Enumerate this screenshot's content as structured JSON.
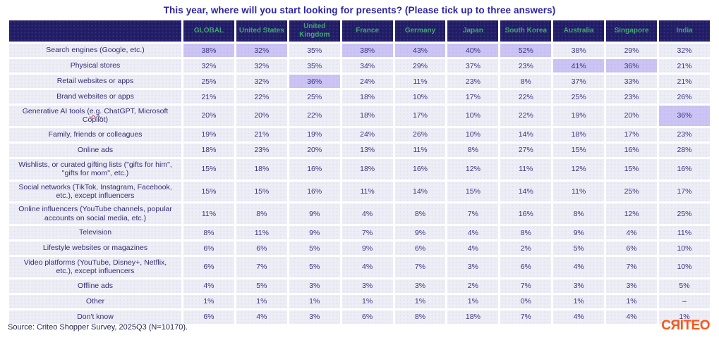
{
  "title": "This year, where will you start looking for presents? (Please tick up to three answers)",
  "source": "Source: Criteo Shopper Survey, 2025Q3 (N=10170).",
  "brand": {
    "logo_text": "CЯITEO",
    "logo_color": "#F4581C"
  },
  "colors": {
    "header_bg": "#211C66",
    "header_text": "#41A86F",
    "cell_bg": "#EDEDF6",
    "highlight_bg": "#CBC4F4",
    "body_text": "#3A3580",
    "title_text": "#2B24A3",
    "logo_orange": "#F4581C"
  },
  "chart_data": {
    "type": "table",
    "title": "This year, where will you start looking for presents? (Please tick up to three answers)",
    "value_unit": "%",
    "columns": [
      "GLOBAL",
      "United States",
      "United Kingdom",
      "France",
      "Germany",
      "Japan",
      "South Korea",
      "Australia",
      "Singapore",
      "India"
    ],
    "highlight_meaning": "highlighted cell = top answer within that column",
    "rows": [
      {
        "label": "Search engines (Google, etc.)",
        "values": [
          38,
          32,
          35,
          38,
          43,
          40,
          52,
          38,
          29,
          32
        ],
        "highlights": [
          0,
          1,
          3,
          4,
          5,
          6
        ]
      },
      {
        "label": "Physical stores",
        "values": [
          32,
          32,
          35,
          34,
          29,
          37,
          23,
          41,
          36,
          21
        ],
        "highlights": [
          7,
          8
        ]
      },
      {
        "label": "Retail websites or apps",
        "values": [
          25,
          32,
          36,
          24,
          11,
          23,
          8,
          37,
          33,
          21
        ],
        "highlights": [
          2
        ]
      },
      {
        "label": "Brand websites or apps",
        "values": [
          21,
          22,
          25,
          18,
          10,
          17,
          22,
          25,
          23,
          26
        ],
        "highlights": []
      },
      {
        "label": "Generative AI tools (e.g. ChatGPT, Microsoft Copilot)",
        "values": [
          20,
          20,
          22,
          18,
          17,
          10,
          22,
          19,
          20,
          36
        ],
        "highlights": [
          9
        ],
        "tall": true,
        "squiggle": "e.g."
      },
      {
        "label": "Family, friends or colleagues",
        "values": [
          19,
          21,
          19,
          24,
          26,
          10,
          14,
          18,
          17,
          23
        ],
        "highlights": []
      },
      {
        "label": "Online ads",
        "values": [
          18,
          23,
          20,
          13,
          11,
          8,
          27,
          15,
          16,
          28
        ],
        "highlights": []
      },
      {
        "label": "Wishlists, or curated gifting lists (\"gifts for him\", \"gifts for mom\", etc.)",
        "values": [
          15,
          18,
          16,
          18,
          16,
          12,
          11,
          12,
          15,
          16
        ],
        "highlights": []
      },
      {
        "label": "Social networks (TikTok, Instagram, Facebook, etc.), except influencers",
        "values": [
          15,
          15,
          16,
          11,
          14,
          15,
          14,
          11,
          25,
          17
        ],
        "highlights": []
      },
      {
        "label": "Online influencers (YouTube channels, popular accounts on social media, etc.)",
        "values": [
          11,
          8,
          9,
          4,
          8,
          7,
          16,
          8,
          12,
          25
        ],
        "highlights": []
      },
      {
        "label": "Television",
        "values": [
          8,
          11,
          9,
          7,
          9,
          4,
          8,
          9,
          4,
          11
        ],
        "highlights": []
      },
      {
        "label": "Lifestyle websites or magazines",
        "values": [
          6,
          6,
          5,
          9,
          6,
          4,
          2,
          5,
          6,
          10
        ],
        "highlights": []
      },
      {
        "label": "Video platforms (YouTube, Disney+, Netflix, etc.), except influencers",
        "values": [
          6,
          7,
          5,
          4,
          7,
          3,
          6,
          4,
          7,
          10
        ],
        "highlights": []
      },
      {
        "label": "Offline ads",
        "values": [
          4,
          5,
          3,
          3,
          3,
          2,
          7,
          3,
          3,
          5
        ],
        "highlights": []
      },
      {
        "label": "Other",
        "values": [
          1,
          1,
          1,
          1,
          1,
          1,
          0,
          1,
          1,
          "–"
        ],
        "highlights": []
      },
      {
        "label": "Don't know",
        "values": [
          6,
          4,
          3,
          6,
          8,
          18,
          7,
          4,
          4,
          1
        ],
        "highlights": []
      }
    ],
    "source": "Source: Criteo Shopper Survey, 2025Q3 (N=10170)."
  }
}
